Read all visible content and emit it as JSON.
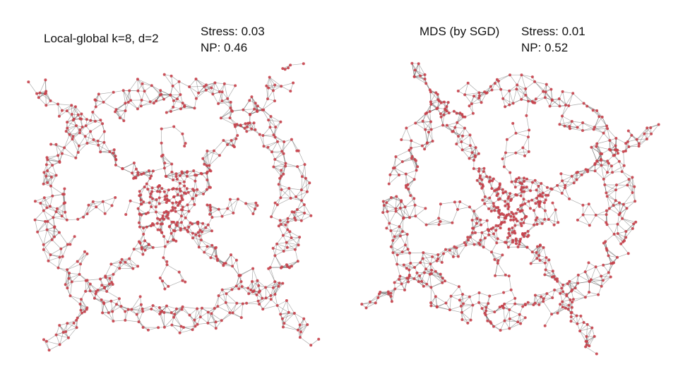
{
  "panels": [
    {
      "title": "Local-global k=8, d=2",
      "stress": "Stress: 0.03",
      "np": "NP: 0.46"
    },
    {
      "title": "MDS (by SGD)",
      "stress": "Stress: 0.01",
      "np": "NP: 0.52"
    }
  ],
  "colors": {
    "node": "#c8414b",
    "edge": "#4a4a4a"
  }
}
